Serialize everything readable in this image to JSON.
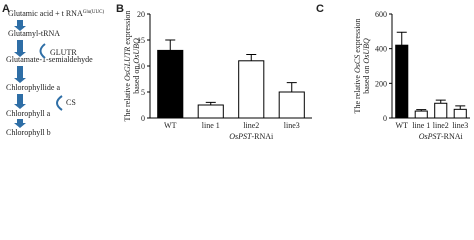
{
  "panel_labels": [
    "A",
    "B",
    "C"
  ],
  "pathway": {
    "steps": [
      "Glutamic acid + t RNA",
      "Glutamyl-tRNA",
      "Glutamate-1-semialdehyde",
      "Chlorophyllide a",
      "Chlorophyll a",
      "Chlorophyll b"
    ],
    "superscript": "Glu(UUC)",
    "enzymes": [
      "GLUTR",
      "CS"
    ]
  },
  "chart_data": [
    {
      "type": "bar",
      "ylabel": [
        [
          "The relative ",
          "OsGLUTR",
          " expression"
        ],
        [
          "based on ",
          "OsUBQ"
        ]
      ],
      "categories": [
        "WT",
        "line 1",
        "line2",
        "line3"
      ],
      "xlabel": [
        "OsPST",
        "-RNAi"
      ],
      "values": [
        13,
        2.5,
        11,
        5
      ],
      "errors": [
        2,
        0.5,
        1.2,
        1.8
      ],
      "colors": [
        "#000000",
        "#ffffff",
        "#ffffff",
        "#ffffff"
      ],
      "ylim": [
        0,
        20
      ],
      "yticks": [
        0,
        5,
        10,
        15,
        20
      ]
    },
    {
      "type": "bar",
      "ylabel": [
        [
          "The relative ",
          "OsCS",
          " expression"
        ],
        [
          "based on ",
          "OsUBQ"
        ]
      ],
      "categories": [
        "WT",
        "line 1",
        "line2",
        "line3"
      ],
      "xlabel": [
        "OsPST",
        "-RNAi"
      ],
      "values": [
        420,
        40,
        85,
        50
      ],
      "errors": [
        75,
        8,
        18,
        20
      ],
      "colors": [
        "#000000",
        "#ffffff",
        "#ffffff",
        "#ffffff"
      ],
      "ylim": [
        0,
        600
      ],
      "yticks": [
        0,
        200,
        400,
        600
      ]
    }
  ]
}
